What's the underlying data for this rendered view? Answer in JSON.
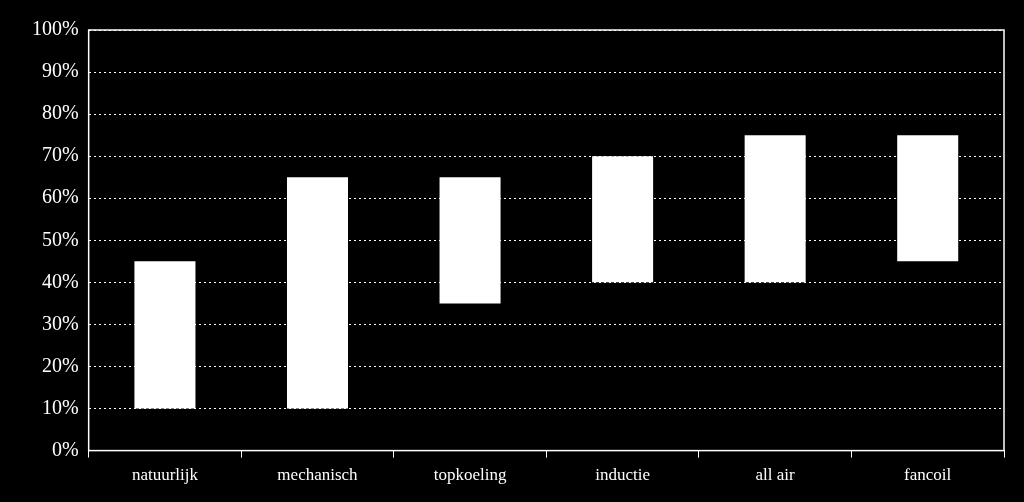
{
  "chart_data": {
    "type": "bar",
    "categories": [
      "natuurlijk",
      "mechanisch",
      "topkoeling",
      "inductie",
      "all air",
      "fancoil"
    ],
    "values": [
      [
        10,
        45
      ],
      [
        10,
        65
      ],
      [
        35,
        65
      ],
      [
        40,
        70
      ],
      [
        40,
        75
      ],
      [
        45,
        75
      ]
    ],
    "color": "#ffffff",
    "ylim": [
      0,
      100
    ],
    "yticks": [
      {
        "value": 0,
        "label": "0%"
      },
      {
        "value": 10,
        "label": "10%"
      },
      {
        "value": 20,
        "label": "20%"
      },
      {
        "value": 30,
        "label": "30%"
      },
      {
        "value": 40,
        "label": "40%"
      },
      {
        "value": 50,
        "label": "50%"
      },
      {
        "value": 60,
        "label": "60%"
      },
      {
        "value": 70,
        "label": "70%"
      },
      {
        "value": 80,
        "label": "80%"
      },
      {
        "value": 90,
        "label": "90%"
      },
      {
        "value": 100,
        "label": "100%"
      }
    ],
    "grid": true
  }
}
